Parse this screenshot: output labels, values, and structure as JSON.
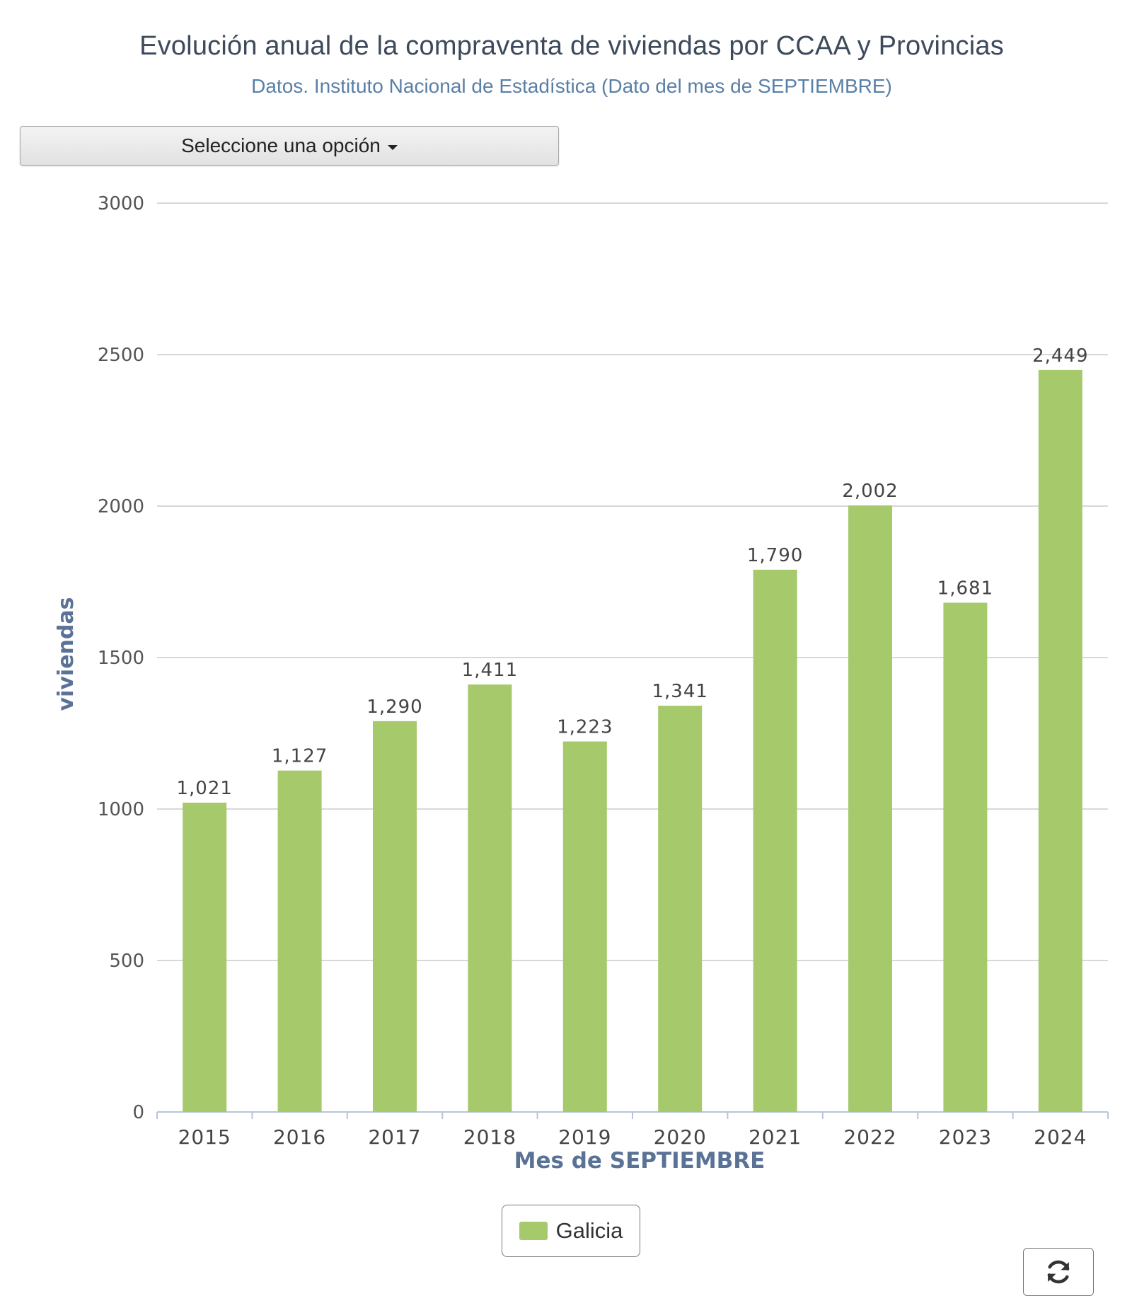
{
  "header": {
    "title": "Evolución anual de la compraventa de viviendas por CCAA y Provincias",
    "subtitle": "Datos. Instituto Nacional de Estadística (Dato del mes de SEPTIEMBRE)"
  },
  "selector": {
    "label": "Seleccione una opción"
  },
  "legend": {
    "label": "Galicia",
    "color": "#a5c96b"
  },
  "refresh": {
    "icon": "refresh-icon"
  },
  "chart_data": {
    "type": "bar",
    "title": "Evolución anual de la compraventa de viviendas por CCAA y Provincias",
    "subtitle": "Datos. Instituto Nacional de Estadística (Dato del mes de SEPTIEMBRE)",
    "categories": [
      "2015",
      "2016",
      "2017",
      "2018",
      "2019",
      "2020",
      "2021",
      "2022",
      "2023",
      "2024"
    ],
    "series": [
      {
        "name": "Galicia",
        "values": [
          1021,
          1127,
          1290,
          1411,
          1223,
          1341,
          1790,
          2002,
          1681,
          2449
        ],
        "color": "#a5c96b"
      }
    ],
    "data_labels": [
      "1,021",
      "1,127",
      "1,290",
      "1,411",
      "1,223",
      "1,341",
      "1,790",
      "2,002",
      "1,681",
      "2,449"
    ],
    "xlabel": "Mes de SEPTIEMBRE",
    "ylabel": "viviendas",
    "ylim": [
      0,
      3000
    ],
    "yticks": [
      0,
      500,
      1000,
      1500,
      2000,
      2500,
      3000
    ],
    "grid": true,
    "legend_position": "bottom-center"
  }
}
